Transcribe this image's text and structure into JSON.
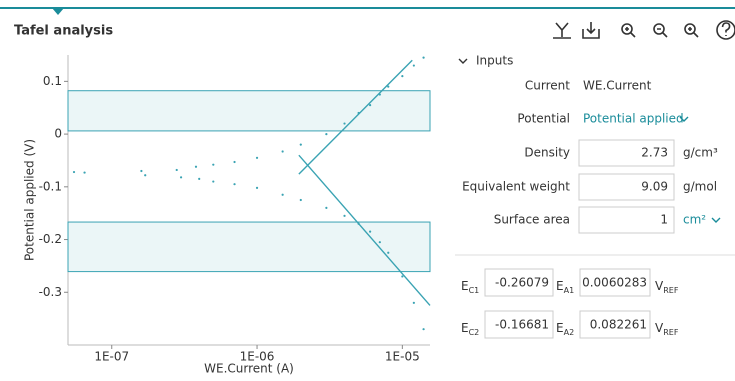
{
  "header": {
    "title": "Tafel analysis"
  },
  "chart_data": {
    "type": "scatter",
    "x_label": "WE.Current (A)",
    "y_label": "Potential applied (V)",
    "log_x": true,
    "xlim": [
      5e-08,
      1.55e-05
    ],
    "ylim": [
      -0.4,
      0.15
    ],
    "xticks": [
      {
        "value": 1e-07,
        "label": "1E-07"
      },
      {
        "value": 1e-06,
        "label": "1E-06"
      },
      {
        "value": 1e-05,
        "label": "1E-05"
      }
    ],
    "yticks": [
      0.1,
      0,
      -0.1,
      -0.2,
      -0.3
    ],
    "series": [
      {
        "color": "#3aa3b3",
        "x": [
          5.5e-08,
          6.5e-08,
          1.6e-07,
          2.8e-07,
          3.8e-07,
          5e-07,
          7e-07,
          1e-06,
          1.5e-06,
          2e-06,
          3e-06,
          4e-06,
          5e-06,
          6e-06,
          7e-06,
          8e-06,
          1e-05,
          1.2e-05,
          1.4e-05
        ],
        "values": [
          -0.072,
          -0.073,
          -0.07,
          -0.068,
          -0.062,
          -0.058,
          -0.053,
          -0.045,
          -0.033,
          -0.02,
          0.0,
          0.02,
          0.04,
          0.055,
          0.075,
          0.09,
          0.11,
          0.13,
          0.145
        ]
      },
      {
        "color": "#3aa3b3",
        "x": [
          1.7e-07,
          3e-07,
          4e-07,
          5e-07,
          7e-07,
          1e-06,
          1.5e-06,
          2e-06,
          3e-06,
          4e-06,
          5e-06,
          6e-06,
          7e-06,
          8e-06,
          1e-05,
          1.2e-05,
          1.4e-05
        ],
        "values": [
          -0.078,
          -0.082,
          -0.085,
          -0.09,
          -0.095,
          -0.102,
          -0.115,
          -0.125,
          -0.14,
          -0.155,
          -0.17,
          -0.185,
          -0.205,
          -0.225,
          -0.27,
          -0.32,
          -0.37
        ]
      }
    ],
    "fit_lines": [
      {
        "color": "#3aa3b3",
        "x": [
          1.94e-06,
          1.17e-05
        ],
        "values": [
          -0.076,
          0.14
        ]
      },
      {
        "color": "#3aa3b3",
        "x": [
          1.94e-06,
          1.55e-05
        ],
        "values": [
          -0.04,
          -0.325
        ]
      }
    ],
    "band_color": "#3aa3b3"
  },
  "inputs": {
    "section": "Inputs",
    "rows": [
      {
        "label": "Current",
        "value": "WE.Current"
      },
      {
        "label": "Potential",
        "value": "Potential applied"
      },
      {
        "label": "Density",
        "value": 2.73,
        "unit": "g/cm³"
      },
      {
        "label": "Equivalent weight",
        "value": 9.09,
        "unit": "g/mol"
      },
      {
        "label": "Surface area",
        "value": 1,
        "unit": "cm²"
      }
    ]
  },
  "results": {
    "unit": "V",
    "unit_sub": "REF",
    "rows": [
      {
        "c_symbol": "E",
        "c_sub": "C1",
        "c_value": -0.26079,
        "a_symbol": "E",
        "a_sub": "A1",
        "a_value": 0.0060283
      },
      {
        "c_symbol": "E",
        "c_sub": "C2",
        "c_value": -0.16681,
        "a_symbol": "E",
        "a_sub": "A2",
        "a_value": 0.082261
      }
    ]
  }
}
